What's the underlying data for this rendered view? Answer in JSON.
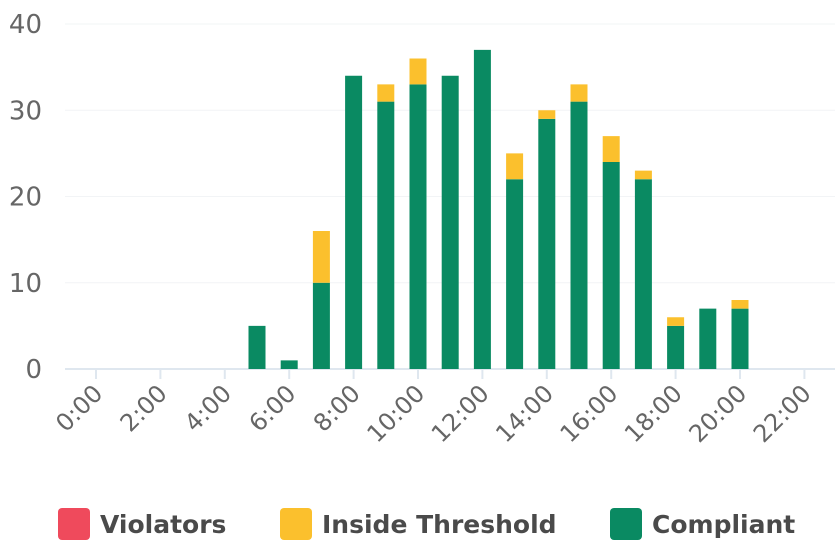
{
  "chart_data": {
    "type": "bar",
    "stacked": true,
    "x": [
      "0:00",
      "1:00",
      "2:00",
      "3:00",
      "4:00",
      "5:00",
      "6:00",
      "7:00",
      "8:00",
      "9:00",
      "10:00",
      "11:00",
      "12:00",
      "13:00",
      "14:00",
      "15:00",
      "16:00",
      "17:00",
      "18:00",
      "19:00",
      "20:00",
      "21:00",
      "22:00"
    ],
    "x_tick_labels": [
      "0:00",
      "2:00",
      "4:00",
      "6:00",
      "8:00",
      "10:00",
      "12:00",
      "14:00",
      "16:00",
      "18:00",
      "20:00",
      "22:00"
    ],
    "y_tick_labels": [
      "0",
      "10",
      "20",
      "30",
      "40"
    ],
    "ylim": [
      0,
      40
    ],
    "grid": true,
    "legend_position": "bottom",
    "series": [
      {
        "name": "Violators",
        "color": "#ef4a5c",
        "values": [
          0,
          0,
          0,
          0,
          0,
          0,
          0,
          0,
          0,
          0,
          0,
          0,
          0,
          0,
          0,
          0,
          0,
          0,
          0,
          0,
          0,
          0,
          0
        ]
      },
      {
        "name": "Inside Threshold",
        "color": "#fbc02d",
        "values": [
          0,
          0,
          0,
          0,
          0,
          0,
          0,
          6,
          0,
          2,
          3,
          0,
          0,
          3,
          1,
          2,
          3,
          1,
          1,
          0,
          1,
          0,
          0
        ]
      },
      {
        "name": "Compliant",
        "color": "#0a8a62",
        "values": [
          0,
          0,
          0,
          0,
          0,
          5,
          1,
          10,
          34,
          31,
          33,
          34,
          37,
          22,
          29,
          31,
          24,
          22,
          5,
          7,
          7,
          0,
          0
        ]
      }
    ]
  }
}
